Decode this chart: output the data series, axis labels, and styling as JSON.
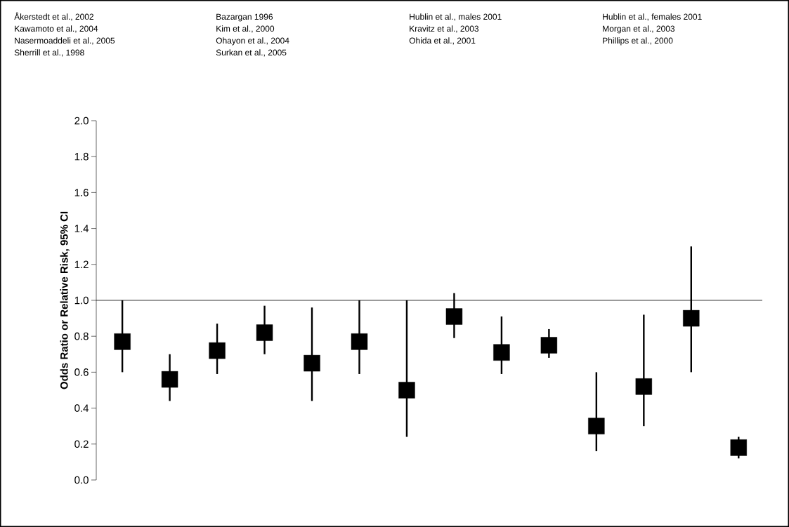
{
  "chart_data": {
    "type": "scatter",
    "ylabel": "Odds Ratio or Relative Risk, 95% CI",
    "categories": [
      null,
      null,
      null,
      null,
      null,
      null,
      null,
      null,
      null,
      null,
      null,
      null,
      null,
      null
    ],
    "values": [
      0.77,
      0.56,
      0.72,
      0.82,
      0.65,
      0.77,
      0.5,
      0.91,
      0.71,
      0.75,
      0.3,
      0.52,
      0.9,
      0.18
    ],
    "errors": [
      [
        0.6,
        1.0
      ],
      [
        0.44,
        0.7
      ],
      [
        0.59,
        0.87
      ],
      [
        0.7,
        0.97
      ],
      [
        0.44,
        0.96
      ],
      [
        0.59,
        1.0
      ],
      [
        0.24,
        1.0
      ],
      [
        0.79,
        1.04
      ],
      [
        0.59,
        0.91
      ],
      [
        0.68,
        0.84
      ],
      [
        0.16,
        0.6
      ],
      [
        0.3,
        0.92
      ],
      [
        0.6,
        1.3
      ],
      [
        0.12,
        0.24
      ]
    ],
    "color": "#000000",
    "marker": "square",
    "tick_labels": "y",
    "ylim": [
      0,
      2
    ],
    "yticks": [
      {
        "value": 0,
        "label": "0.0"
      },
      {
        "value": 0.2,
        "label": "0.2"
      },
      {
        "value": 0.4,
        "label": "0.4"
      },
      {
        "value": 0.6,
        "label": "0.6"
      },
      {
        "value": 0.8,
        "label": "0.8"
      },
      {
        "value": 1,
        "label": "1.0"
      },
      {
        "value": 1.2,
        "label": "1.2"
      },
      {
        "value": 1.4,
        "label": "1.4"
      },
      {
        "value": 1.6,
        "label": "1.6"
      },
      {
        "value": 1.8,
        "label": "1.8"
      },
      {
        "value": 2,
        "label": "2.0"
      }
    ],
    "ref_lines": [
      {
        "axis": "y",
        "value": 1,
        "color": "#000000"
      }
    ],
    "annotations": [
      "Åkerstedt et al., 2002",
      "Bazargan 1996",
      "Hublin et al., males 2001",
      "Hublin et al., females 2001",
      "Kawamoto et al., 2004",
      "Kim et al., 2000",
      "Kravitz et al., 2003",
      "Morgan et al., 2003",
      "Nasermoaddeli et al., 2005",
      "Ohayon et al., 2004",
      "Ohida et al., 2001",
      "Phillips et al., 2000",
      "Sherrill et al., 1998",
      "Surkan et al., 2005"
    ]
  }
}
